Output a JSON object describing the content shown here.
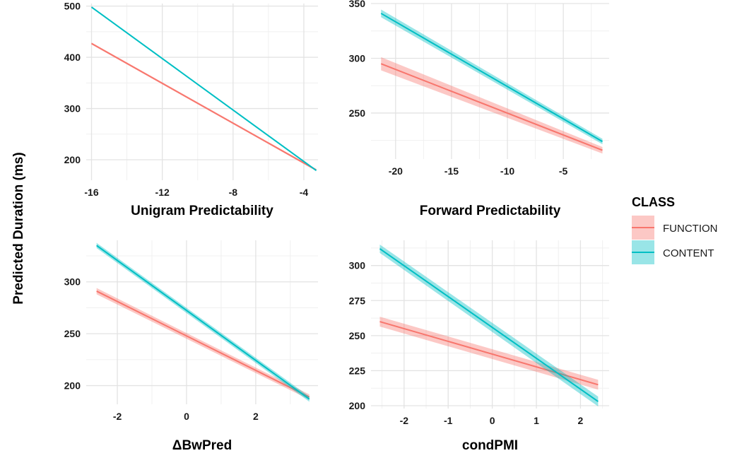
{
  "ylabel": "Predicted Duration (ms)",
  "colors": {
    "FUNCTION": "#F8766D",
    "CONTENT": "#00BFC4"
  },
  "legend": {
    "title": "CLASS",
    "placement": "right",
    "items": [
      {
        "label": "FUNCTION",
        "color": "#F8766D"
      },
      {
        "label": "CONTENT",
        "color": "#00BFC4"
      }
    ]
  },
  "chart_data": [
    {
      "type": "line",
      "xlabel": "Unigram Predictability",
      "xlim": [
        -16.3,
        -3.2
      ],
      "ylim": [
        160,
        505
      ],
      "xticks": [
        -16,
        -12,
        -8,
        -4
      ],
      "xtick_labels": [
        "-16",
        "-12",
        "-8",
        "-4"
      ],
      "yticks": [
        200,
        300,
        400,
        500
      ],
      "ytick_labels": [
        "200",
        "300",
        "400",
        "500"
      ],
      "series": [
        {
          "name": "FUNCTION",
          "x": [
            -16,
            -3.3
          ],
          "y": [
            427,
            180
          ],
          "ci": [
            2,
            2
          ]
        },
        {
          "name": "CONTENT",
          "x": [
            -16,
            -3.3
          ],
          "y": [
            498,
            179
          ],
          "ci": [
            1.5,
            1.5
          ]
        }
      ]
    },
    {
      "type": "line",
      "xlabel": "Forward Predictability",
      "xlim": [
        -22.2,
        -0.9
      ],
      "ylim": [
        208,
        350
      ],
      "xticks": [
        -20,
        -15,
        -10,
        -5
      ],
      "xtick_labels": [
        "-20",
        "-15",
        "-10",
        "-5"
      ],
      "yticks": [
        250,
        300,
        350
      ],
      "ytick_labels": [
        "250",
        "300",
        "350"
      ],
      "series": [
        {
          "name": "FUNCTION",
          "x": [
            -21.3,
            -1.5
          ],
          "y": [
            295,
            216
          ],
          "ci": [
            6,
            3
          ]
        },
        {
          "name": "CONTENT",
          "x": [
            -21.3,
            -1.5
          ],
          "y": [
            341,
            224
          ],
          "ci": [
            3.5,
            2.5
          ]
        }
      ]
    },
    {
      "type": "line",
      "xlabel": "ΔBwPred",
      "xlim": [
        -2.9,
        3.8
      ],
      "ylim": [
        182,
        340
      ],
      "xticks": [
        -2,
        0,
        2
      ],
      "xtick_labels": [
        "-2",
        "0",
        "2"
      ],
      "yticks": [
        200,
        250,
        300
      ],
      "ytick_labels": [
        "200",
        "250",
        "300"
      ],
      "series": [
        {
          "name": "FUNCTION",
          "x": [
            -2.6,
            3.55
          ],
          "y": [
            291,
            189
          ],
          "ci": [
            3,
            2.5
          ]
        },
        {
          "name": "CONTENT",
          "x": [
            -2.6,
            3.55
          ],
          "y": [
            335,
            187
          ],
          "ci": [
            2.5,
            2.5
          ]
        }
      ]
    },
    {
      "type": "line",
      "xlabel": "condPMI",
      "xlim": [
        -2.75,
        2.65
      ],
      "ylim": [
        198,
        318
      ],
      "xticks": [
        -2,
        -1,
        0,
        1,
        2
      ],
      "xtick_labels": [
        "-2",
        "-1",
        "0",
        "1",
        "2"
      ],
      "yticks": [
        200,
        225,
        250,
        275,
        300
      ],
      "ytick_labels": [
        "200",
        "225",
        "250",
        "275",
        "300"
      ],
      "series": [
        {
          "name": "FUNCTION",
          "x": [
            -2.55,
            2.4
          ],
          "y": [
            260,
            215
          ],
          "ci": [
            3.5,
            3.5
          ]
        },
        {
          "name": "CONTENT",
          "x": [
            -2.55,
            2.4
          ],
          "y": [
            312,
            203
          ],
          "ci": [
            3,
            3.5
          ]
        }
      ]
    }
  ]
}
